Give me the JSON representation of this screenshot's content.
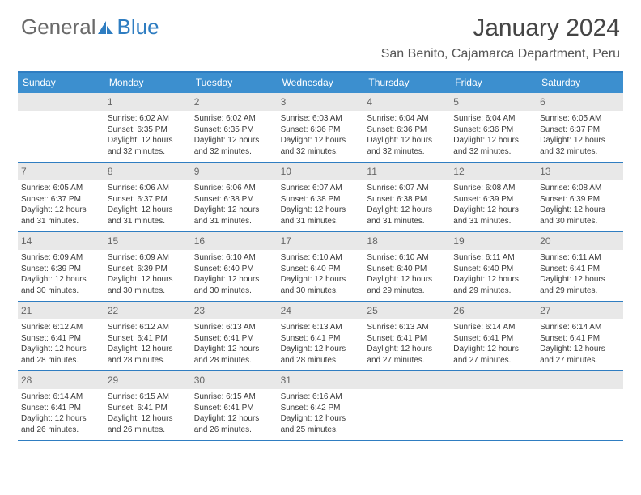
{
  "logo": {
    "part1": "General",
    "part2": "Blue"
  },
  "title": "January 2024",
  "location": "San Benito, Cajamarca Department, Peru",
  "colors": {
    "header_bg": "#3c8fcf",
    "header_text": "#ffffff",
    "rule": "#2f7dc1",
    "daynum_bg": "#e8e8e8",
    "body_text": "#3a3a3a",
    "title_text": "#454545"
  },
  "day_names": [
    "Sunday",
    "Monday",
    "Tuesday",
    "Wednesday",
    "Thursday",
    "Friday",
    "Saturday"
  ],
  "weeks": [
    [
      {
        "n": "",
        "sr": "",
        "ss": "",
        "dl": ""
      },
      {
        "n": "1",
        "sr": "6:02 AM",
        "ss": "6:35 PM",
        "dl": "12 hours and 32 minutes."
      },
      {
        "n": "2",
        "sr": "6:02 AM",
        "ss": "6:35 PM",
        "dl": "12 hours and 32 minutes."
      },
      {
        "n": "3",
        "sr": "6:03 AM",
        "ss": "6:36 PM",
        "dl": "12 hours and 32 minutes."
      },
      {
        "n": "4",
        "sr": "6:04 AM",
        "ss": "6:36 PM",
        "dl": "12 hours and 32 minutes."
      },
      {
        "n": "5",
        "sr": "6:04 AM",
        "ss": "6:36 PM",
        "dl": "12 hours and 32 minutes."
      },
      {
        "n": "6",
        "sr": "6:05 AM",
        "ss": "6:37 PM",
        "dl": "12 hours and 32 minutes."
      }
    ],
    [
      {
        "n": "7",
        "sr": "6:05 AM",
        "ss": "6:37 PM",
        "dl": "12 hours and 31 minutes."
      },
      {
        "n": "8",
        "sr": "6:06 AM",
        "ss": "6:37 PM",
        "dl": "12 hours and 31 minutes."
      },
      {
        "n": "9",
        "sr": "6:06 AM",
        "ss": "6:38 PM",
        "dl": "12 hours and 31 minutes."
      },
      {
        "n": "10",
        "sr": "6:07 AM",
        "ss": "6:38 PM",
        "dl": "12 hours and 31 minutes."
      },
      {
        "n": "11",
        "sr": "6:07 AM",
        "ss": "6:38 PM",
        "dl": "12 hours and 31 minutes."
      },
      {
        "n": "12",
        "sr": "6:08 AM",
        "ss": "6:39 PM",
        "dl": "12 hours and 31 minutes."
      },
      {
        "n": "13",
        "sr": "6:08 AM",
        "ss": "6:39 PM",
        "dl": "12 hours and 30 minutes."
      }
    ],
    [
      {
        "n": "14",
        "sr": "6:09 AM",
        "ss": "6:39 PM",
        "dl": "12 hours and 30 minutes."
      },
      {
        "n": "15",
        "sr": "6:09 AM",
        "ss": "6:39 PM",
        "dl": "12 hours and 30 minutes."
      },
      {
        "n": "16",
        "sr": "6:10 AM",
        "ss": "6:40 PM",
        "dl": "12 hours and 30 minutes."
      },
      {
        "n": "17",
        "sr": "6:10 AM",
        "ss": "6:40 PM",
        "dl": "12 hours and 30 minutes."
      },
      {
        "n": "18",
        "sr": "6:10 AM",
        "ss": "6:40 PM",
        "dl": "12 hours and 29 minutes."
      },
      {
        "n": "19",
        "sr": "6:11 AM",
        "ss": "6:40 PM",
        "dl": "12 hours and 29 minutes."
      },
      {
        "n": "20",
        "sr": "6:11 AM",
        "ss": "6:41 PM",
        "dl": "12 hours and 29 minutes."
      }
    ],
    [
      {
        "n": "21",
        "sr": "6:12 AM",
        "ss": "6:41 PM",
        "dl": "12 hours and 28 minutes."
      },
      {
        "n": "22",
        "sr": "6:12 AM",
        "ss": "6:41 PM",
        "dl": "12 hours and 28 minutes."
      },
      {
        "n": "23",
        "sr": "6:13 AM",
        "ss": "6:41 PM",
        "dl": "12 hours and 28 minutes."
      },
      {
        "n": "24",
        "sr": "6:13 AM",
        "ss": "6:41 PM",
        "dl": "12 hours and 28 minutes."
      },
      {
        "n": "25",
        "sr": "6:13 AM",
        "ss": "6:41 PM",
        "dl": "12 hours and 27 minutes."
      },
      {
        "n": "26",
        "sr": "6:14 AM",
        "ss": "6:41 PM",
        "dl": "12 hours and 27 minutes."
      },
      {
        "n": "27",
        "sr": "6:14 AM",
        "ss": "6:41 PM",
        "dl": "12 hours and 27 minutes."
      }
    ],
    [
      {
        "n": "28",
        "sr": "6:14 AM",
        "ss": "6:41 PM",
        "dl": "12 hours and 26 minutes."
      },
      {
        "n": "29",
        "sr": "6:15 AM",
        "ss": "6:41 PM",
        "dl": "12 hours and 26 minutes."
      },
      {
        "n": "30",
        "sr": "6:15 AM",
        "ss": "6:41 PM",
        "dl": "12 hours and 26 minutes."
      },
      {
        "n": "31",
        "sr": "6:16 AM",
        "ss": "6:42 PM",
        "dl": "12 hours and 25 minutes."
      },
      {
        "n": "",
        "sr": "",
        "ss": "",
        "dl": ""
      },
      {
        "n": "",
        "sr": "",
        "ss": "",
        "dl": ""
      },
      {
        "n": "",
        "sr": "",
        "ss": "",
        "dl": ""
      }
    ]
  ],
  "labels": {
    "sunrise": "Sunrise: ",
    "sunset": "Sunset: ",
    "daylight": "Daylight: "
  }
}
